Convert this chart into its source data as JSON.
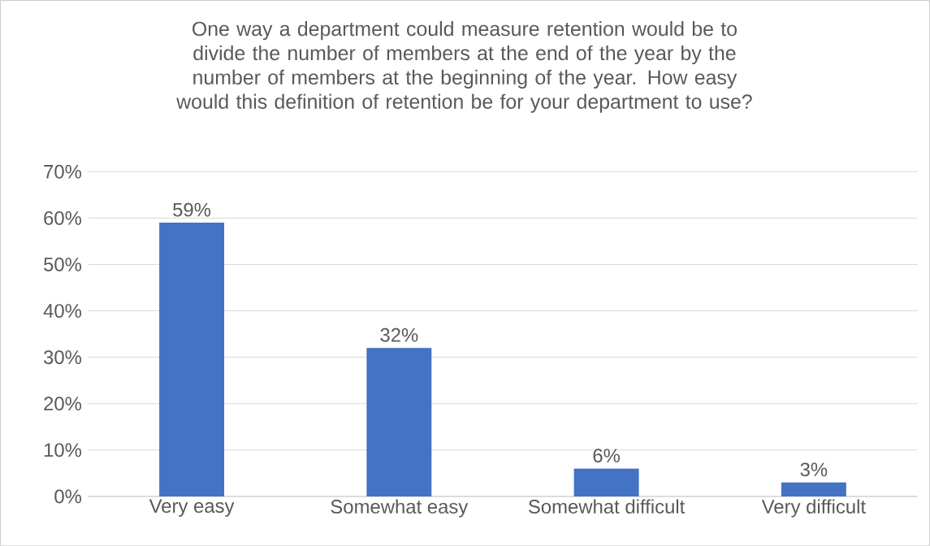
{
  "chart_data": {
    "type": "bar",
    "title": "One way a department could measure retention would be to divide the number of members at the end of the year by the number of members at the beginning of the year. How easy would this definition of retention be for your department to use?",
    "categories": [
      "Very easy",
      "Somewhat easy",
      "Somewhat difficult",
      "Very difficult"
    ],
    "values": [
      59,
      32,
      6,
      3
    ],
    "value_labels": [
      "59%",
      "32%",
      "6%",
      "3%"
    ],
    "color": "#4472c4",
    "ylim": [
      0,
      70
    ],
    "yticks": [
      {
        "value": 0,
        "label": "0%"
      },
      {
        "value": 10,
        "label": "10%"
      },
      {
        "value": 20,
        "label": "20%"
      },
      {
        "value": 30,
        "label": "30%"
      },
      {
        "value": 40,
        "label": "40%"
      },
      {
        "value": 50,
        "label": "50%"
      },
      {
        "value": 60,
        "label": "60%"
      },
      {
        "value": 70,
        "label": "70%"
      }
    ],
    "grid": "y"
  }
}
